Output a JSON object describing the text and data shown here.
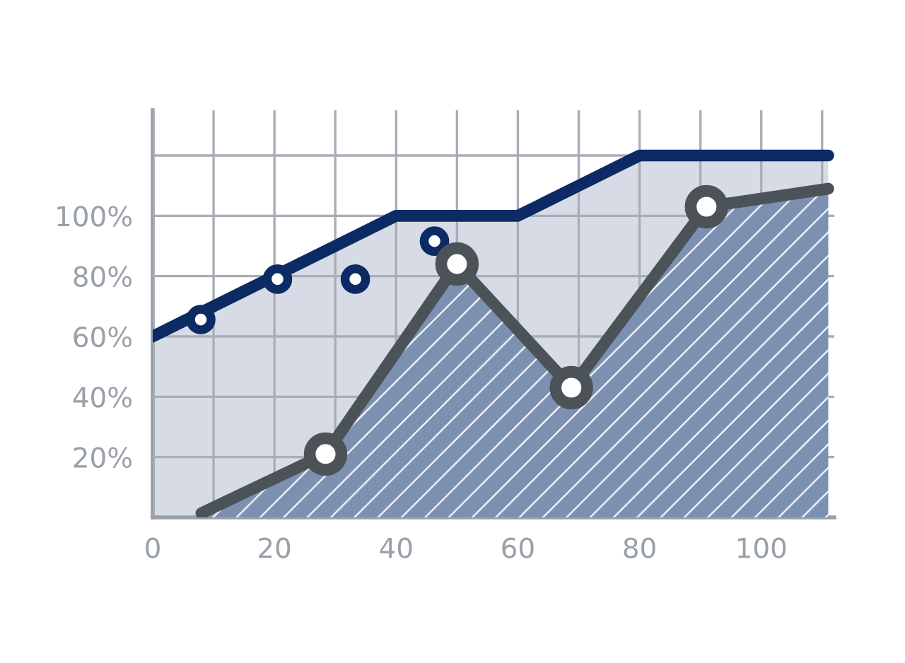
{
  "chart_data": {
    "type": "area",
    "series": [
      {
        "color": "#0c2a63",
        "x": [
          0,
          40,
          60,
          80,
          111
        ],
        "values": [
          60,
          100,
          100,
          120,
          120
        ],
        "marker": "none"
      },
      {
        "type": "scatter",
        "color": "#0c2a63",
        "x": [
          7.9,
          20.5,
          33.3,
          46.3
        ],
        "values": [
          65.6,
          79,
          79,
          91.6
        ],
        "marker": "circle"
      },
      {
        "color": "#4b5359",
        "x": [
          8,
          28.4,
          50,
          68.8,
          91,
          111
        ],
        "values": [
          1.4,
          21,
          84,
          43,
          103,
          109
        ],
        "marker": "none"
      },
      {
        "type": "scatter",
        "color": "#4b5359",
        "x": [
          28.4,
          50,
          68.8,
          91
        ],
        "values": [
          21,
          84,
          43,
          103
        ],
        "marker": "circle"
      }
    ],
    "xlim": [
      0,
      112
    ],
    "ylim": [
      0,
      135
    ],
    "xticks": [
      0,
      {
        "value": 10,
        "label": null
      },
      20,
      {
        "value": 30,
        "label": null
      },
      40,
      {
        "value": 50,
        "label": null
      },
      60,
      {
        "value": 70,
        "label": null
      },
      80,
      {
        "value": 90,
        "label": null
      },
      100,
      {
        "value": 110,
        "label": null
      }
    ],
    "yticks": [
      {
        "value": 20,
        "label": "20%"
      },
      {
        "value": 40,
        "label": "40%"
      },
      {
        "value": 60,
        "label": "60%"
      },
      {
        "value": 80,
        "label": "80%"
      },
      {
        "value": 100,
        "label": "100%"
      },
      {
        "value": 120,
        "label": null
      }
    ],
    "grid": true,
    "legend": false
  }
}
